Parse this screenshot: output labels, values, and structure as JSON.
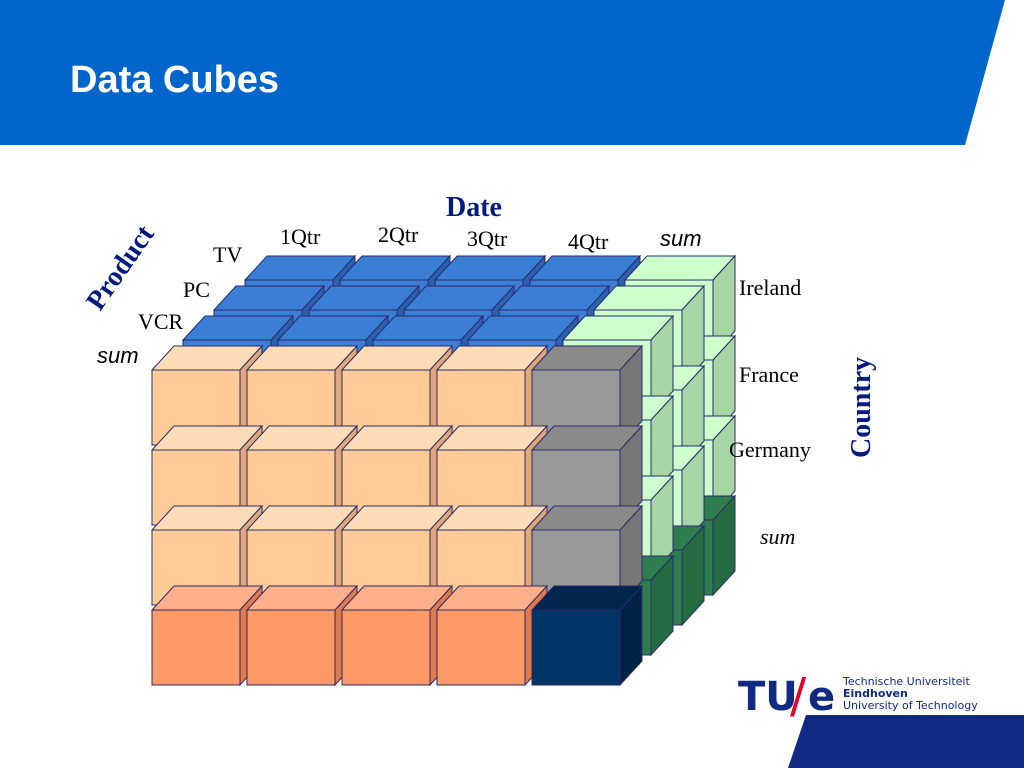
{
  "header": {
    "title": "Data Cubes"
  },
  "cube": {
    "date_label": "Date",
    "product_label": "Product",
    "country_label": "Country",
    "dates": [
      "1Qtr",
      "2Qtr",
      "3Qtr",
      "4Qtr",
      "sum"
    ],
    "products": [
      "TV",
      "PC",
      "VCR",
      "sum"
    ],
    "countries": [
      "Ireland",
      "France",
      "Germany",
      "sum"
    ]
  },
  "logo": {
    "tu": "TU",
    "slash": "/",
    "e": "e",
    "line1": "Technische Universiteit",
    "line2": "Eindhoven",
    "line3": "University of Technology"
  }
}
